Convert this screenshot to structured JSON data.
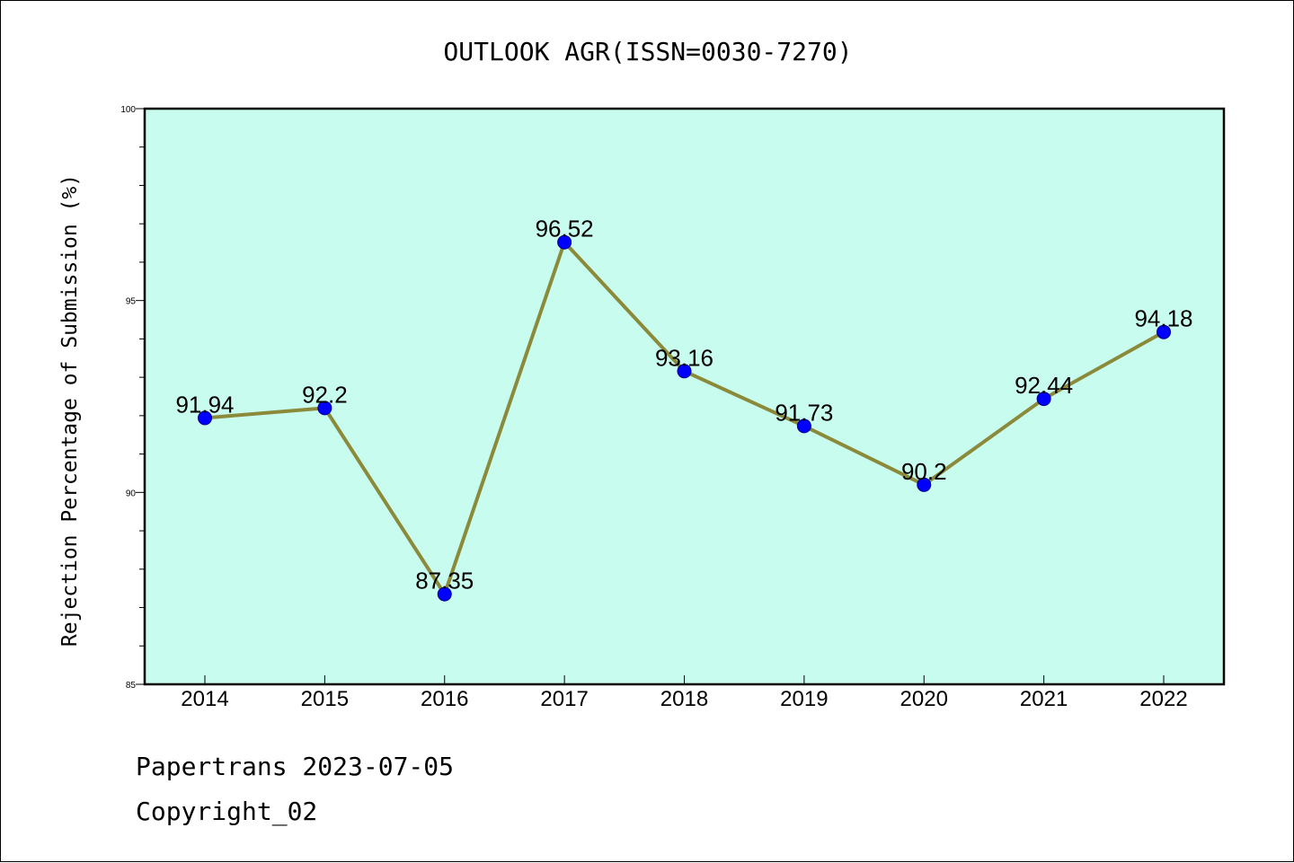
{
  "chart_data": {
    "type": "line",
    "title": "OUTLOOK AGR(ISSN=0030-7270)",
    "ylabel": "Rejection Percentage of Submission (%)",
    "xlabel": "",
    "categories": [
      "2014",
      "2015",
      "2016",
      "2017",
      "2018",
      "2019",
      "2020",
      "2021",
      "2022"
    ],
    "values": [
      91.94,
      92.2,
      87.35,
      96.52,
      93.16,
      91.73,
      90.2,
      92.44,
      94.18
    ],
    "data_labels": [
      "91.94",
      "92.2",
      "87.35",
      "96.52",
      "93.16",
      "91.73",
      "90.2",
      "92.44",
      "94.18"
    ],
    "ylim": [
      85,
      100
    ],
    "yticks": [
      "85",
      "90",
      "95",
      "100"
    ],
    "grid": false,
    "colors": {
      "plot_background": "#c8fcee",
      "line": "#8b8a3a",
      "marker": "#0000ff",
      "marker_edge": "#00008b"
    }
  },
  "footer": {
    "line1": "Papertrans 2023-07-05",
    "line2": "Copyright_02"
  }
}
